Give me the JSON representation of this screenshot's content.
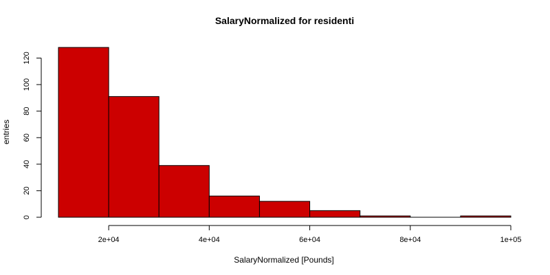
{
  "chart_data": {
    "type": "bar",
    "title": "SalaryNormalized for residenti",
    "xlabel": "SalaryNormalized [Pounds]",
    "ylabel": "entries",
    "bins": [
      {
        "x0": 10000,
        "x1": 20000,
        "count": 128
      },
      {
        "x0": 20000,
        "x1": 30000,
        "count": 91
      },
      {
        "x0": 30000,
        "x1": 40000,
        "count": 39
      },
      {
        "x0": 40000,
        "x1": 50000,
        "count": 16
      },
      {
        "x0": 50000,
        "x1": 60000,
        "count": 12
      },
      {
        "x0": 60000,
        "x1": 70000,
        "count": 5
      },
      {
        "x0": 70000,
        "x1": 80000,
        "count": 1
      },
      {
        "x0": 80000,
        "x1": 90000,
        "count": 0
      },
      {
        "x0": 90000,
        "x1": 100000,
        "count": 1
      }
    ],
    "xlim": [
      10000,
      100000
    ],
    "ylim": [
      0,
      128
    ],
    "x_ticks": [
      {
        "value": 20000,
        "label": "2e+04"
      },
      {
        "value": 40000,
        "label": "4e+04"
      },
      {
        "value": 60000,
        "label": "6e+04"
      },
      {
        "value": 80000,
        "label": "8e+04"
      },
      {
        "value": 100000,
        "label": "1e+05"
      }
    ],
    "y_ticks": [
      {
        "value": 0,
        "label": "0"
      },
      {
        "value": 20,
        "label": "20"
      },
      {
        "value": 40,
        "label": "40"
      },
      {
        "value": 60,
        "label": "60"
      },
      {
        "value": 80,
        "label": "80"
      },
      {
        "value": 100,
        "label": "100"
      },
      {
        "value": 120,
        "label": "120"
      }
    ],
    "bar_color": "#cc0000",
    "grid": false,
    "legend": "none"
  }
}
